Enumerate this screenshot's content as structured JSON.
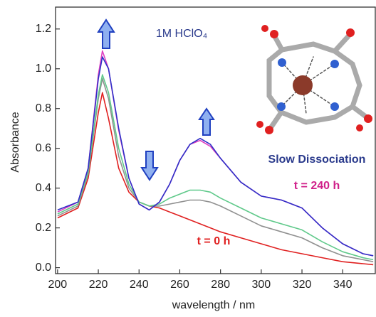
{
  "chart_data": {
    "type": "line",
    "xlabel": "wavelength / nm",
    "ylabel": "Absorbance",
    "x": [
      200,
      210,
      215,
      220,
      222,
      225,
      230,
      235,
      240,
      245,
      250,
      255,
      260,
      265,
      270,
      275,
      280,
      290,
      300,
      310,
      320,
      330,
      340,
      350,
      355
    ],
    "series": [
      {
        "color": "#e02020",
        "values": [
          0.25,
          0.3,
          0.45,
          0.78,
          0.88,
          0.75,
          0.5,
          0.38,
          0.33,
          0.31,
          0.3,
          0.28,
          0.26,
          0.24,
          0.22,
          0.2,
          0.18,
          0.15,
          0.12,
          0.09,
          0.07,
          0.05,
          0.03,
          0.02,
          0.015
        ]
      },
      {
        "color": "#909090",
        "values": [
          0.26,
          0.31,
          0.47,
          0.85,
          0.95,
          0.85,
          0.56,
          0.4,
          0.33,
          0.31,
          0.31,
          0.32,
          0.33,
          0.34,
          0.34,
          0.33,
          0.31,
          0.26,
          0.21,
          0.18,
          0.15,
          0.1,
          0.06,
          0.04,
          0.03
        ]
      },
      {
        "color": "#5fc98a",
        "values": [
          0.27,
          0.32,
          0.48,
          0.87,
          0.97,
          0.88,
          0.6,
          0.42,
          0.33,
          0.31,
          0.32,
          0.35,
          0.37,
          0.39,
          0.39,
          0.38,
          0.35,
          0.3,
          0.25,
          0.22,
          0.19,
          0.13,
          0.08,
          0.05,
          0.04
        ]
      },
      {
        "color": "#e040c0",
        "values": [
          0.28,
          0.33,
          0.5,
          0.97,
          1.09,
          1.0,
          0.69,
          0.45,
          0.32,
          0.29,
          0.33,
          0.42,
          0.54,
          0.62,
          0.64,
          0.61,
          0.55,
          0.43,
          0.36,
          0.34,
          0.3,
          0.2,
          0.12,
          0.07,
          0.06
        ]
      },
      {
        "color": "#3030c8",
        "values": [
          0.29,
          0.33,
          0.5,
          0.95,
          1.06,
          1.0,
          0.7,
          0.45,
          0.32,
          0.29,
          0.33,
          0.42,
          0.54,
          0.62,
          0.65,
          0.62,
          0.55,
          0.43,
          0.36,
          0.34,
          0.3,
          0.2,
          0.12,
          0.07,
          0.06
        ]
      }
    ],
    "xlim": [
      199,
      356
    ],
    "ylim": [
      -0.03,
      1.31
    ],
    "xticks": [
      200,
      220,
      240,
      260,
      280,
      300,
      320,
      340
    ],
    "yticks": [
      {
        "value": 0,
        "label": "0.0"
      },
      0.2,
      0.4,
      0.6,
      0.8,
      {
        "value": 1,
        "label": "1.0"
      },
      1.2
    ],
    "annotations": [
      {
        "text": "1M HClO₄",
        "color": "#2a3a8c"
      },
      {
        "text": "Slow Dissociation",
        "color": "#2a3a8c"
      },
      {
        "text": "t = 240 h",
        "color": "#d0208a"
      },
      {
        "text": "t = 0 h",
        "color": "#e02020"
      }
    ]
  }
}
